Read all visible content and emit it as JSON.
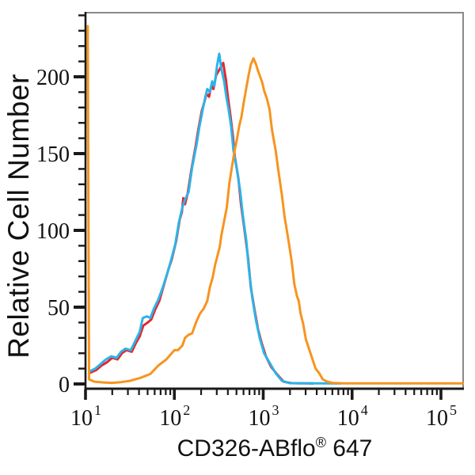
{
  "colors": {
    "background": "#ffffff",
    "axis": "#1a1a1a",
    "frame_gray": "#8a8a8a",
    "series_red": "#e8252b",
    "series_cyan": "#2bb4e9",
    "series_orange": "#f7941e",
    "text": "#111111"
  },
  "chart_data": {
    "type": "line",
    "variant": "flow-cytometry-histogram-overlay",
    "title": "",
    "xlabel": "CD326-ABflo® 647",
    "xlabel_parts": {
      "name": "CD326-ABflo",
      "registered": "®",
      "suffix": " 647"
    },
    "ylabel": "Relative Cell Number",
    "x_scale": "log10",
    "grid": false,
    "legend": "none",
    "x_axis": {
      "min_log": 1.0,
      "max_log": 5.25,
      "major_ticks": [
        {
          "log": 1,
          "base": "10",
          "exp": "1"
        },
        {
          "log": 2,
          "base": "10",
          "exp": "2"
        },
        {
          "log": 3,
          "base": "10",
          "exp": "3"
        },
        {
          "log": 4,
          "base": "10",
          "exp": "4"
        },
        {
          "log": 5,
          "base": "10",
          "exp": "5"
        }
      ],
      "minor_tick_multiples": [
        2,
        3,
        4,
        5,
        6,
        7,
        8,
        9
      ]
    },
    "y_axis": {
      "min": 0,
      "max": 242,
      "major_ticks": [
        0,
        50,
        100,
        150,
        200
      ],
      "minor_step": 10,
      "minor_max": 240
    },
    "series": [
      {
        "name": "red-overlay-histogram",
        "color_key": "series_red",
        "peak": {
          "x_log": 2.55,
          "y": 209
        },
        "points": [
          [
            1.04,
            7
          ],
          [
            1.12,
            9
          ],
          [
            1.18,
            12
          ],
          [
            1.24,
            14
          ],
          [
            1.3,
            17
          ],
          [
            1.36,
            16
          ],
          [
            1.41,
            20
          ],
          [
            1.46,
            22
          ],
          [
            1.52,
            21
          ],
          [
            1.57,
            27
          ],
          [
            1.61,
            31
          ],
          [
            1.65,
            38
          ],
          [
            1.7,
            40
          ],
          [
            1.74,
            42
          ],
          [
            1.78,
            48
          ],
          [
            1.83,
            54
          ],
          [
            1.88,
            64
          ],
          [
            1.93,
            74
          ],
          [
            1.97,
            81
          ],
          [
            2.02,
            93
          ],
          [
            2.06,
            107
          ],
          [
            2.085,
            112
          ],
          [
            2.1,
            121
          ],
          [
            2.12,
            117
          ],
          [
            2.15,
            124
          ],
          [
            2.19,
            139
          ],
          [
            2.24,
            155
          ],
          [
            2.27,
            166
          ],
          [
            2.31,
            178
          ],
          [
            2.34,
            184
          ],
          [
            2.36,
            189
          ],
          [
            2.39,
            187
          ],
          [
            2.42,
            195
          ],
          [
            2.44,
            192
          ],
          [
            2.47,
            201
          ],
          [
            2.5,
            204
          ],
          [
            2.52,
            206
          ],
          [
            2.55,
            209
          ],
          [
            2.58,
            198
          ],
          [
            2.6,
            188
          ],
          [
            2.63,
            175
          ],
          [
            2.66,
            161
          ],
          [
            2.68,
            148
          ],
          [
            2.72,
            134
          ],
          [
            2.75,
            117
          ],
          [
            2.79,
            100
          ],
          [
            2.83,
            82
          ],
          [
            2.86,
            63
          ],
          [
            2.9,
            49
          ],
          [
            2.94,
            36
          ],
          [
            2.98,
            27
          ],
          [
            3.03,
            18
          ],
          [
            3.09,
            11
          ],
          [
            3.16,
            6
          ],
          [
            3.23,
            1.5
          ],
          [
            3.32,
            0.5
          ],
          [
            3.56,
            0.3
          ]
        ]
      },
      {
        "name": "cyan-overlay-histogram",
        "color_key": "series_cyan",
        "peak": {
          "x_log": 2.505,
          "y": 215
        },
        "points": [
          [
            1.04,
            8
          ],
          [
            1.11,
            10
          ],
          [
            1.17,
            13
          ],
          [
            1.23,
            16
          ],
          [
            1.29,
            18
          ],
          [
            1.35,
            17
          ],
          [
            1.4,
            21
          ],
          [
            1.45,
            23
          ],
          [
            1.51,
            22
          ],
          [
            1.56,
            28
          ],
          [
            1.61,
            34
          ],
          [
            1.645,
            43
          ],
          [
            1.69,
            44
          ],
          [
            1.73,
            43
          ],
          [
            1.77,
            49
          ],
          [
            1.82,
            55
          ],
          [
            1.87,
            63
          ],
          [
            1.92,
            72
          ],
          [
            1.96,
            80
          ],
          [
            2.01,
            91
          ],
          [
            2.05,
            105
          ],
          [
            2.09,
            115
          ],
          [
            2.12,
            120
          ],
          [
            2.16,
            125
          ],
          [
            2.2,
            141
          ],
          [
            2.25,
            156
          ],
          [
            2.28,
            167
          ],
          [
            2.32,
            179
          ],
          [
            2.345,
            186
          ],
          [
            2.37,
            192
          ],
          [
            2.4,
            190
          ],
          [
            2.425,
            197
          ],
          [
            2.45,
            194
          ],
          [
            2.48,
            207
          ],
          [
            2.505,
            215
          ],
          [
            2.53,
            205
          ],
          [
            2.56,
            197
          ],
          [
            2.585,
            187
          ],
          [
            2.61,
            179
          ],
          [
            2.64,
            167
          ],
          [
            2.665,
            152
          ],
          [
            2.7,
            141
          ],
          [
            2.74,
            126
          ],
          [
            2.77,
            110
          ],
          [
            2.81,
            93
          ],
          [
            2.84,
            74
          ],
          [
            2.88,
            55
          ],
          [
            2.92,
            41
          ],
          [
            2.96,
            30
          ],
          [
            3.01,
            20
          ],
          [
            3.08,
            13
          ],
          [
            3.14,
            7
          ],
          [
            3.21,
            2
          ],
          [
            3.3,
            0.5
          ],
          [
            3.87,
            0.3
          ]
        ]
      },
      {
        "name": "orange-stained-histogram",
        "color_key": "series_orange",
        "peak": {
          "x_log": 2.89,
          "y": 212
        },
        "boundary_spike": {
          "x_log": 1.03,
          "y": 233
        },
        "points": [
          [
            1.025,
            233
          ],
          [
            1.04,
            3
          ],
          [
            1.1,
            1.5
          ],
          [
            1.2,
            1
          ],
          [
            1.3,
            0.7
          ],
          [
            1.4,
            1.2
          ],
          [
            1.5,
            2
          ],
          [
            1.62,
            4
          ],
          [
            1.73,
            6.5
          ],
          [
            1.82,
            12
          ],
          [
            1.91,
            16
          ],
          [
            2.0,
            22
          ],
          [
            2.04,
            22
          ],
          [
            2.09,
            25
          ],
          [
            2.12,
            30
          ],
          [
            2.16,
            32
          ],
          [
            2.2,
            33
          ],
          [
            2.25,
            41
          ],
          [
            2.29,
            46
          ],
          [
            2.33,
            49
          ],
          [
            2.37,
            54
          ],
          [
            2.4,
            63
          ],
          [
            2.43,
            69
          ],
          [
            2.46,
            78
          ],
          [
            2.51,
            89
          ],
          [
            2.53,
            97
          ],
          [
            2.56,
            106
          ],
          [
            2.59,
            115
          ],
          [
            2.62,
            131
          ],
          [
            2.65,
            142
          ],
          [
            2.675,
            151
          ],
          [
            2.7,
            158
          ],
          [
            2.73,
            168
          ],
          [
            2.755,
            174
          ],
          [
            2.78,
            183
          ],
          [
            2.81,
            193
          ],
          [
            2.835,
            201
          ],
          [
            2.86,
            208
          ],
          [
            2.89,
            212
          ],
          [
            2.92,
            208
          ],
          [
            2.94,
            204
          ],
          [
            2.96,
            201
          ],
          [
            2.99,
            196
          ],
          [
            3.01,
            191
          ],
          [
            3.04,
            186
          ],
          [
            3.07,
            179
          ],
          [
            3.1,
            165
          ],
          [
            3.14,
            152
          ],
          [
            3.17,
            139
          ],
          [
            3.21,
            123
          ],
          [
            3.24,
            109
          ],
          [
            3.28,
            95
          ],
          [
            3.32,
            80
          ],
          [
            3.35,
            65
          ],
          [
            3.38,
            57
          ],
          [
            3.4,
            54
          ],
          [
            3.42,
            46
          ],
          [
            3.45,
            39
          ],
          [
            3.48,
            29
          ],
          [
            3.52,
            22
          ],
          [
            3.56,
            15
          ],
          [
            3.59,
            10
          ],
          [
            3.63,
            7
          ],
          [
            3.67,
            3
          ],
          [
            3.72,
            1.5
          ],
          [
            3.78,
            0.7
          ],
          [
            3.91,
            0.4
          ],
          [
            4.5,
            0.4
          ],
          [
            5.245,
            0.4
          ]
        ]
      }
    ]
  }
}
